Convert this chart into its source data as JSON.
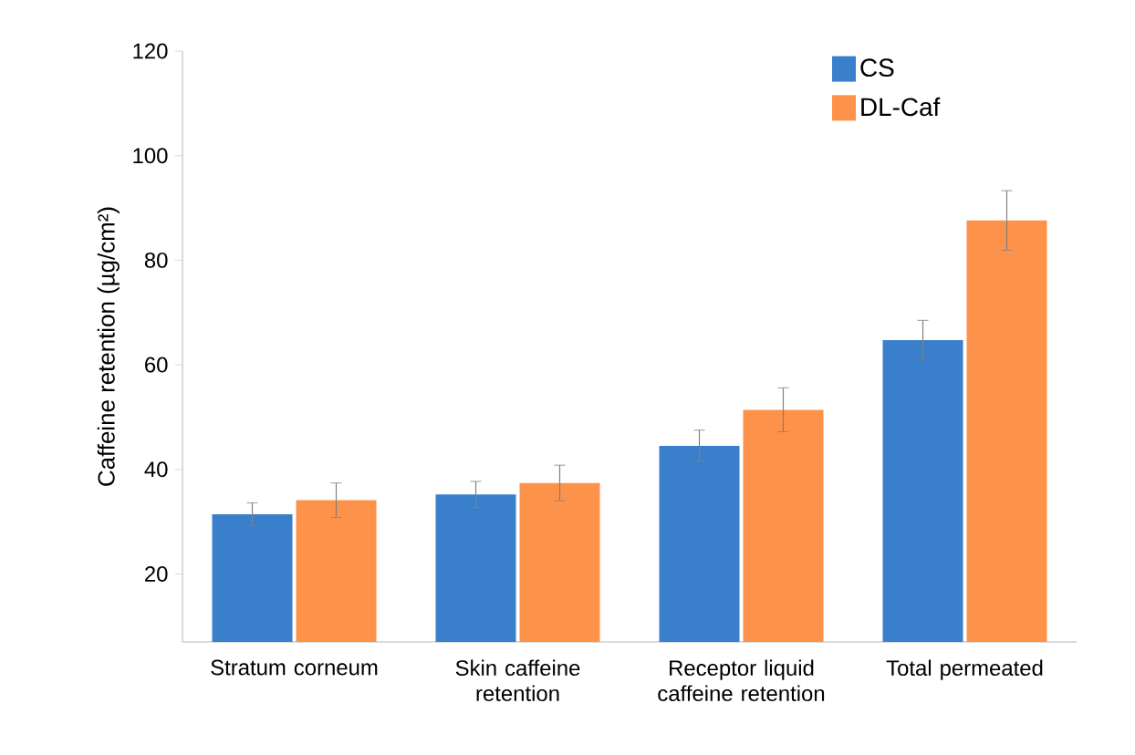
{
  "chart_data": {
    "type": "bar",
    "ylabel": "Caffeine retention (µg/cm²)",
    "categories": [
      "Stratum corneum",
      "Skin caffeine retention",
      "Receptor liquid caffeine retention",
      "Total permeated"
    ],
    "series": [
      {
        "name": "CS",
        "color": "#3a7fcc",
        "values": [
          31.4,
          35.2,
          44.5,
          64.7
        ],
        "errors": [
          2.2,
          2.5,
          3.0,
          3.8
        ]
      },
      {
        "name": "DL-Caf",
        "color": "#fd934a",
        "values": [
          34.1,
          37.4,
          51.4,
          87.6
        ],
        "errors": [
          3.3,
          3.4,
          4.2,
          5.7
        ]
      }
    ],
    "ylim": [
      7,
      120
    ],
    "yticks": [
      20,
      40,
      60,
      80,
      100,
      120
    ],
    "legend": "top right",
    "grid": false
  }
}
